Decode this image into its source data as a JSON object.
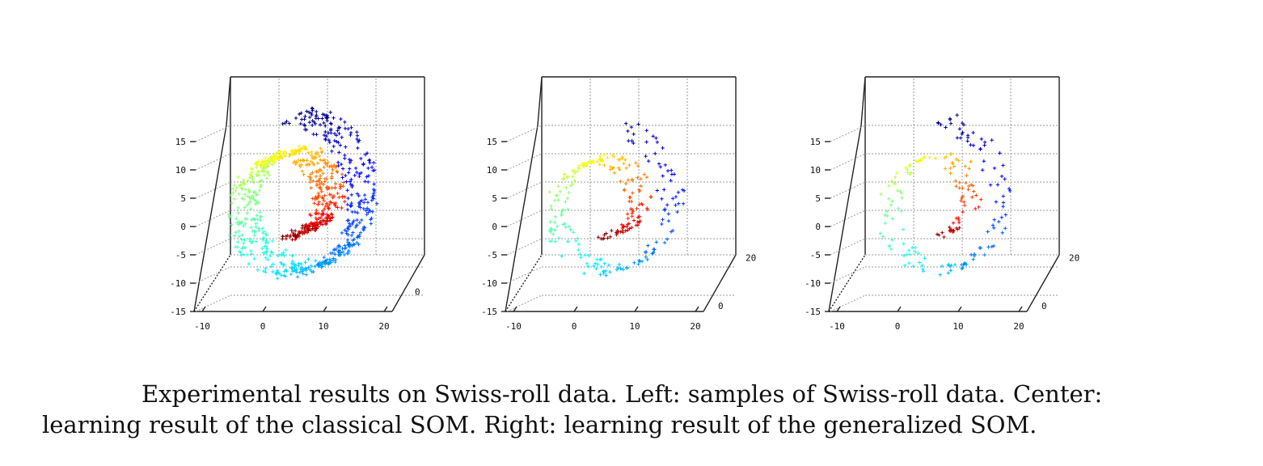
{
  "figure": {
    "caption_line1": "Experimental results on Swiss-roll data. Left: samples of Swiss-roll data. Center:",
    "caption_line2": "learning result of the classical SOM. Right: learning result of the generalized SOM."
  },
  "chart_data": [
    {
      "type": "scatter",
      "projection": "3d",
      "grid": true,
      "colormap": "jet",
      "marker": "+",
      "zlim": [
        -15,
        15
      ],
      "zticks": [
        "15",
        "10",
        "5",
        "0",
        "-5",
        "-10",
        "-15"
      ],
      "xticks": [
        "-10",
        "0",
        "10",
        "20"
      ],
      "yticks": [
        "0"
      ],
      "series": [
        {
          "t_range": [
            4.7,
            14.1
          ],
          "points": 900
        }
      ]
    },
    {
      "type": "scatter",
      "projection": "3d",
      "grid": true,
      "colormap": "jet",
      "marker": "+",
      "zlim": [
        -15,
        15
      ],
      "zticks": [
        "15",
        "10",
        "5",
        "0",
        "-5",
        "-10",
        "-15"
      ],
      "xticks": [
        "-10",
        "0",
        "10",
        "20"
      ],
      "yticks": [
        "20",
        "0"
      ],
      "series": [
        {
          "t_range": [
            4.7,
            14.1
          ],
          "points": 330
        }
      ]
    },
    {
      "type": "scatter",
      "projection": "3d",
      "grid": true,
      "colormap": "jet",
      "marker": "+",
      "zlim": [
        -15,
        15
      ],
      "zticks": [
        "15",
        "10",
        "5",
        "0",
        "-5",
        "-10",
        "-15"
      ],
      "xticks": [
        "-10",
        "0",
        "10",
        "20"
      ],
      "yticks": [
        "20",
        "0"
      ],
      "series": [
        {
          "t_range": [
            4.7,
            14.1
          ],
          "points": 240
        }
      ]
    }
  ]
}
